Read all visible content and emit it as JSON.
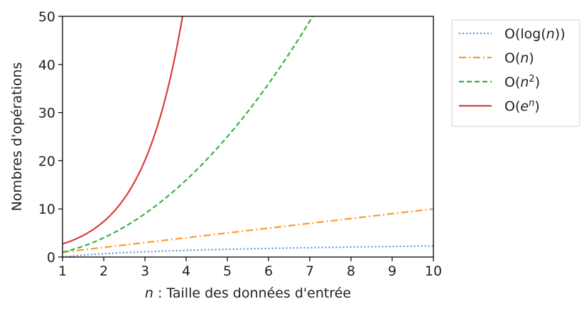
{
  "chart_data": {
    "type": "line",
    "xlabel_var": "n",
    "xlabel_rest": " : Taille des données d'entrée",
    "ylabel": "Nombres d'opérations",
    "xlim": [
      1,
      10
    ],
    "ylim": [
      0,
      50
    ],
    "x_ticks": [
      1,
      2,
      3,
      4,
      5,
      6,
      7,
      8,
      9,
      10
    ],
    "y_ticks": [
      0,
      10,
      20,
      30,
      40,
      50
    ],
    "grid": false,
    "legend_position": "outside-right-top",
    "series": [
      {
        "id": "log",
        "name": "O(log(n))",
        "label_parts": [
          [
            "O(log(",
            false,
            false
          ],
          [
            "n",
            true,
            false
          ],
          [
            "))",
            false,
            false
          ]
        ],
        "function": "log(n)",
        "color": "#5b9bd5",
        "dash": "dotted",
        "x": [
          1,
          2,
          3,
          4,
          5,
          6,
          7,
          8,
          9,
          10
        ],
        "y": [
          0.0,
          0.69,
          1.1,
          1.39,
          1.61,
          1.79,
          1.95,
          2.08,
          2.2,
          2.3
        ]
      },
      {
        "id": "linear",
        "name": "O(n)",
        "label_parts": [
          [
            "O(",
            false,
            false
          ],
          [
            "n",
            true,
            false
          ],
          [
            ")",
            false,
            false
          ]
        ],
        "function": "n",
        "color": "#ff9a2e",
        "dash": "dashdot",
        "x": [
          1,
          2,
          3,
          4,
          5,
          6,
          7,
          8,
          9,
          10
        ],
        "y": [
          1,
          2,
          3,
          4,
          5,
          6,
          7,
          8,
          9,
          10
        ]
      },
      {
        "id": "quadratic",
        "name": "O(n^2)",
        "label_parts": [
          [
            "O(",
            false,
            false
          ],
          [
            "n",
            true,
            false
          ],
          [
            "2",
            false,
            true
          ],
          [
            ")",
            false,
            false
          ]
        ],
        "function": "n^2",
        "color": "#3cb043",
        "dash": "dashed",
        "x": [
          1,
          2,
          3,
          4,
          5,
          6,
          7,
          7.07
        ],
        "y": [
          1,
          4,
          9,
          16,
          25,
          36,
          49,
          50
        ]
      },
      {
        "id": "exponential",
        "name": "O(e^n)",
        "label_parts": [
          [
            "O(",
            false,
            false
          ],
          [
            "e",
            true,
            false
          ],
          [
            "n",
            true,
            true
          ],
          [
            ")",
            false,
            false
          ]
        ],
        "function": "e^n",
        "color": "#d93f3f",
        "dash": "solid",
        "x": [
          1,
          1.5,
          2,
          2.5,
          3,
          3.5,
          3.91
        ],
        "y": [
          2.72,
          4.48,
          7.39,
          12.18,
          20.09,
          33.12,
          50
        ]
      }
    ]
  }
}
